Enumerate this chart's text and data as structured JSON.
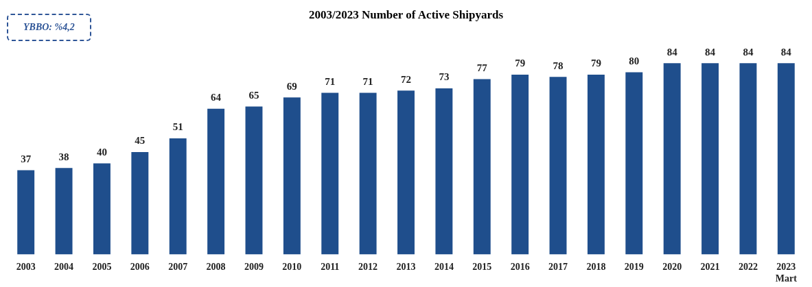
{
  "chart_data": {
    "type": "bar",
    "title": "2003/2023 Number of Active Shipyards",
    "categories": [
      "2003",
      "2004",
      "2005",
      "2006",
      "2007",
      "2008",
      "2009",
      "2010",
      "2011",
      "2012",
      "2013",
      "2014",
      "2015",
      "2016",
      "2017",
      "2018",
      "2019",
      "2020",
      "2021",
      "2022",
      "2023\nMart"
    ],
    "values": [
      37,
      38,
      40,
      45,
      51,
      64,
      65,
      69,
      71,
      71,
      72,
      73,
      77,
      79,
      78,
      79,
      80,
      84,
      84,
      84,
      84
    ],
    "color": "#1f4e8c",
    "data_labels": true,
    "grid": false,
    "legend": false,
    "annotations": [
      "YBBO: %4,2"
    ]
  }
}
